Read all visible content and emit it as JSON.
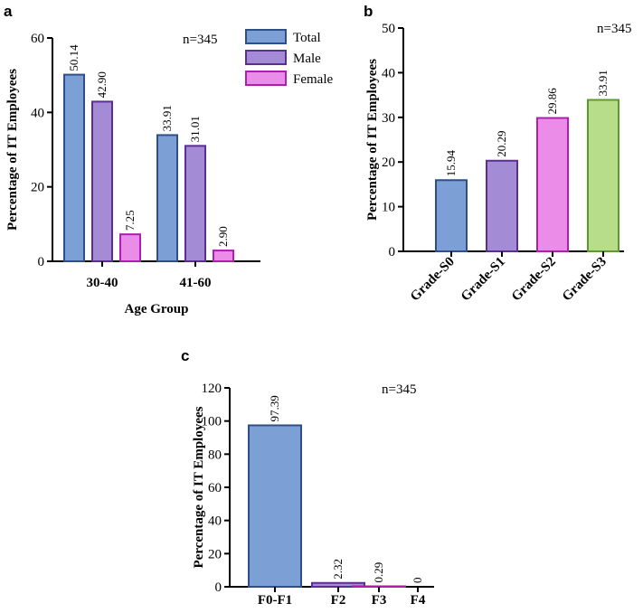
{
  "chart_data": [
    {
      "panel": "a",
      "type": "bar",
      "title": "",
      "annotation": "n=345",
      "xlabel": "Age Group",
      "ylabel": "Percentage of IT Employees",
      "ylim": [
        0,
        60
      ],
      "yticks": [
        "0",
        "20",
        "40",
        "60"
      ],
      "categories": [
        "30-40",
        "41-60"
      ],
      "legend_position": "top-right",
      "series": [
        {
          "name": "Total",
          "values": [
            50.14,
            33.91
          ],
          "labels": [
            "50.14",
            "33.91"
          ],
          "fill": "#7c9fd6",
          "stroke": "#2f4f8a"
        },
        {
          "name": "Male",
          "values": [
            42.9,
            31.01
          ],
          "labels": [
            "42.90",
            "31.01"
          ],
          "fill": "#a48bd6",
          "stroke": "#5b2e91"
        },
        {
          "name": "Female",
          "values": [
            7.25,
            2.9
          ],
          "labels": [
            "7.25",
            "2.90"
          ],
          "fill": "#eb8ce8",
          "stroke": "#b01eb0"
        }
      ]
    },
    {
      "panel": "b",
      "type": "bar",
      "title": "",
      "annotation": "n=345",
      "xlabel": "",
      "ylabel": "Percentage of IT Employees",
      "ylim": [
        0,
        50
      ],
      "yticks": [
        "0",
        "10",
        "20",
        "30",
        "40",
        "50"
      ],
      "categories": [
        "Grade-S0",
        "Grade-S1",
        "Grade-S2",
        "Grade-S3"
      ],
      "values": [
        15.94,
        20.29,
        29.86,
        33.91
      ],
      "labels": [
        "15.94",
        "20.29",
        "29.86",
        "33.91"
      ],
      "fills": [
        "#7c9fd6",
        "#a48bd6",
        "#eb8ce8",
        "#b8dd8a"
      ],
      "strokes": [
        "#2f4f8a",
        "#5b2e91",
        "#b01eb0",
        "#5a9a2e"
      ]
    },
    {
      "panel": "c",
      "type": "bar",
      "title": "",
      "annotation": "n=345",
      "xlabel": "",
      "ylabel": "Percentage of IT Employees",
      "ylim": [
        0,
        120
      ],
      "yticks": [
        "0",
        "20",
        "40",
        "60",
        "80",
        "100",
        "120"
      ],
      "categories": [
        "F0-F1",
        "F2",
        "F3",
        "F4"
      ],
      "values": [
        97.39,
        2.32,
        0.29,
        0
      ],
      "labels": [
        "97.39",
        "2.32",
        "0.29",
        "0"
      ],
      "fills": [
        "#7c9fd6",
        "#a48bd6",
        "#eb8ce8",
        "#b8dd8a"
      ],
      "strokes": [
        "#2f4f8a",
        "#5b2e91",
        "#b01eb0",
        "#5a9a2e"
      ]
    }
  ]
}
